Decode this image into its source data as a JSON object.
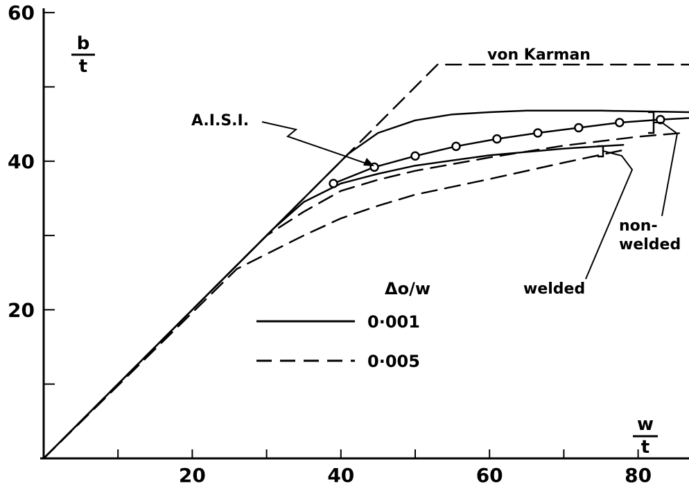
{
  "chart_data": {
    "type": "line",
    "xlabel": {
      "num": "w",
      "den": "t"
    },
    "ylabel": {
      "num": "b",
      "den": "t"
    },
    "xlim": [
      0,
      87
    ],
    "ylim": [
      0,
      60
    ],
    "x_ticks": [
      10,
      20,
      30,
      40,
      50,
      60,
      70,
      80
    ],
    "x_tick_labels": [
      {
        "x": 20,
        "text": "20"
      },
      {
        "x": 40,
        "text": "40"
      },
      {
        "x": 60,
        "text": "60"
      },
      {
        "x": 80,
        "text": "80"
      }
    ],
    "y_ticks": [
      10,
      20,
      30,
      40,
      50,
      60
    ],
    "y_tick_labels": [
      {
        "y": 20,
        "text": "20"
      },
      {
        "y": 40,
        "text": "40"
      },
      {
        "y": 60,
        "text": "60"
      }
    ],
    "legend": {
      "title": "Δo/w",
      "entries": [
        {
          "style": "solid",
          "label": "0·001"
        },
        {
          "style": "dashed",
          "label": "0·005"
        }
      ]
    },
    "series": [
      {
        "name": "von Karman",
        "style": "dashed",
        "points": [
          [
            0,
            0
          ],
          [
            38,
            38
          ],
          [
            53,
            53
          ],
          [
            87,
            53
          ]
        ]
      },
      {
        "style": "solid",
        "points": [
          [
            0,
            0
          ],
          [
            38,
            38
          ],
          [
            41,
            41
          ],
          [
            45,
            43.8
          ],
          [
            50,
            45.5
          ],
          [
            55,
            46.3
          ],
          [
            60,
            46.6
          ],
          [
            65,
            46.8
          ],
          [
            75,
            46.8
          ],
          [
            87,
            46.6
          ]
        ]
      },
      {
        "name": "A.I.S.I.",
        "style": "solid",
        "markers": true,
        "points": [
          [
            39,
            37
          ],
          [
            44.5,
            39.2
          ],
          [
            50,
            40.7
          ],
          [
            55.5,
            42
          ],
          [
            61,
            43
          ],
          [
            66.5,
            43.8
          ],
          [
            72,
            44.5
          ],
          [
            77.5,
            45.2
          ],
          [
            83,
            45.6
          ],
          [
            88.5,
            45.9
          ]
        ]
      },
      {
        "style": "solid",
        "points": [
          [
            0,
            0
          ],
          [
            31,
            31
          ],
          [
            35,
            34.5
          ],
          [
            40,
            37
          ],
          [
            45,
            38.3
          ],
          [
            50,
            39.4
          ],
          [
            60,
            40.8
          ],
          [
            70,
            41.7
          ],
          [
            78,
            42.2
          ]
        ]
      },
      {
        "style": "dashed",
        "points": [
          [
            0,
            0
          ],
          [
            30,
            30
          ],
          [
            35,
            33.2
          ],
          [
            40,
            36
          ],
          [
            45,
            37.5
          ],
          [
            50,
            38.7
          ],
          [
            60,
            40.5
          ],
          [
            70,
            42.1
          ],
          [
            80,
            43.3
          ],
          [
            86,
            43.8
          ]
        ]
      },
      {
        "style": "dashed",
        "points": [
          [
            0,
            0
          ],
          [
            26,
            25.5
          ],
          [
            30,
            27.5
          ],
          [
            35,
            30
          ],
          [
            40,
            32.3
          ],
          [
            45,
            34
          ],
          [
            50,
            35.5
          ],
          [
            60,
            37.6
          ],
          [
            70,
            39.8
          ],
          [
            78,
            41.5
          ]
        ]
      }
    ],
    "annotations": [
      {
        "id": "aisi",
        "text": "A.I.S.I."
      },
      {
        "id": "von_karman",
        "text": "von Karman"
      },
      {
        "id": "non_welded",
        "lines": [
          "non-",
          "welded"
        ]
      },
      {
        "id": "welded",
        "text": "welded"
      }
    ]
  }
}
